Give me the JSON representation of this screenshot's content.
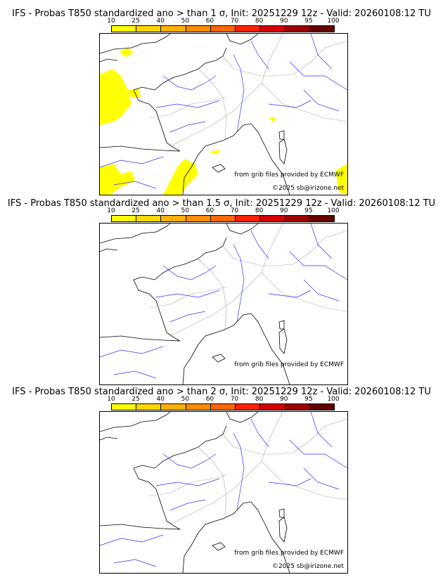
{
  "panels": [
    {
      "title": "IFS - Probas T850  standardized ano > than 1 σ, Init: 20251229 12z - Valid: 20260108:12 TU",
      "has_yellow": true
    },
    {
      "title": "IFS - Probas T850  standardized ano > than 1.5 σ, Init: 20251229 12z - Valid: 20260108:12 TU",
      "has_yellow": false
    },
    {
      "title": "IFS - Probas T850  standardized ano > than 2 σ, Init: 20251229 12z - Valid: 20260108:12 TU",
      "has_yellow": false
    }
  ],
  "colorbar": {
    "ticks": [
      "10",
      "25",
      "40",
      "50",
      "60",
      "70",
      "80",
      "90",
      "95",
      "100"
    ],
    "colors": [
      "#ffff00",
      "#ffd800",
      "#ffb000",
      "#ff8c00",
      "#ff6800",
      "#ff2200",
      "#d40000",
      "#9c0000",
      "#640000"
    ]
  },
  "credits": {
    "source": "from grib files provided by ECMWF",
    "copyright": "©2025 sb@irizone.net"
  }
}
